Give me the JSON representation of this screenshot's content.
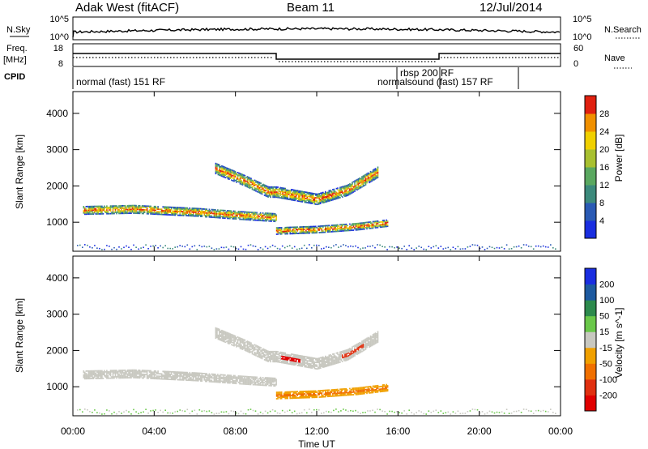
{
  "header": {
    "station": "Adak West (fitACF)",
    "beam": "Beam 11",
    "date": "12/Jul/2014"
  },
  "nsky_panel": {
    "left_label": "N.Sky",
    "left_ticks": [
      "10^5",
      "10^0"
    ],
    "right_label": "N.Search",
    "right_ticks": [
      "10^5",
      "10^0"
    ]
  },
  "freq_panel": {
    "left_label_1": "Freq.",
    "left_label_2": "[MHz]",
    "left_ticks": [
      "18",
      "8"
    ],
    "right_label": "Nave",
    "right_ticks": [
      "60",
      "0"
    ]
  },
  "cpid_panel": {
    "label": "CPID",
    "modes": [
      "normal (fast) 151 RF",
      "rbsp 200 RF",
      "normalsound (fast) 157 RF"
    ]
  },
  "time_axis": {
    "label": "Time UT",
    "ticks": [
      "00:00",
      "04:00",
      "08:00",
      "12:00",
      "16:00",
      "20:00",
      "00:00"
    ]
  },
  "chart_data": [
    {
      "type": "heatmap",
      "title": "",
      "xlabel": "Time UT",
      "ylabel": "Slant Range [km]",
      "x_ticks": [
        "00:00",
        "04:00",
        "08:00",
        "12:00",
        "16:00",
        "20:00",
        "00:00"
      ],
      "y_ticks": [
        1000,
        2000,
        3000,
        4000
      ],
      "ylim": [
        200,
        4600
      ],
      "colorbar": {
        "label": "Power [dB]",
        "ticks": [
          4,
          8,
          12,
          16,
          20,
          24,
          28
        ],
        "colors": [
          "#1a2ee0",
          "#2a5ab4",
          "#3c8a7c",
          "#5aa860",
          "#a8c030",
          "#f0d000",
          "#f09000",
          "#e02010"
        ]
      },
      "series": [
        {
          "x_hours": [
            0.5,
            3,
            6,
            8.5,
            10
          ],
          "range_km": [
            1350,
            1380,
            1300,
            1200,
            1150
          ]
        },
        {
          "x_hours": [
            10,
            12,
            14,
            15.5
          ],
          "range_km": [
            780,
            820,
            900,
            1000
          ]
        },
        {
          "x_hours": [
            7,
            8.5,
            9.6,
            10,
            12,
            13.5,
            15
          ],
          "range_km": [
            2500,
            2150,
            1850,
            1850,
            1650,
            1900,
            2400
          ]
        }
      ]
    },
    {
      "type": "heatmap",
      "title": "",
      "xlabel": "Time UT",
      "ylabel": "Slant Range [km]",
      "x_ticks": [
        "00:00",
        "04:00",
        "08:00",
        "12:00",
        "16:00",
        "20:00",
        "00:00"
      ],
      "y_ticks": [
        1000,
        2000,
        3000,
        4000
      ],
      "ylim": [
        200,
        4600
      ],
      "colorbar": {
        "label": "Velocity [m s^-1]",
        "ticks": [
          "200",
          "100",
          "50",
          "15",
          "-15",
          "-50",
          "-100",
          "-200"
        ],
        "colors": [
          "#1a2ee0",
          "#1d5aa0",
          "#2d8a4d",
          "#6ac84a",
          "#c8c8c0",
          "#f0a000",
          "#f07000",
          "#e03010",
          "#e00000"
        ]
      }
    }
  ]
}
